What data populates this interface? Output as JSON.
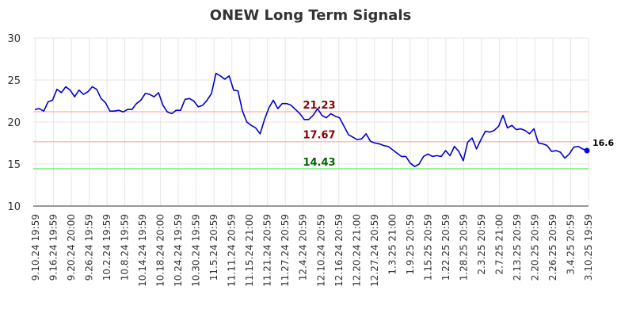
{
  "chart_data": {
    "type": "line",
    "title": "ONEW Long Term Signals",
    "xlabel": "",
    "ylabel": "",
    "ylim": [
      10,
      30
    ],
    "yticks": [
      10,
      15,
      20,
      25,
      30
    ],
    "grid": true,
    "x_tick_labels": [
      "9.10.24 19:59",
      "9.16.24 19:59",
      "9.20.24 20:00",
      "9.26.24 19:59",
      "10.2.24 19:59",
      "10.8.24 19:59",
      "10.14.24 19:59",
      "10.18.24 20:00",
      "10.24.24 19:59",
      "10.30.24 19:59",
      "11.5.24 20:59",
      "11.11.24 20:59",
      "11.15.24 21:00",
      "11.21.24 20:59",
      "11.27.24 20:59",
      "12.4.24 20:59",
      "12.10.24 20:59",
      "12.16.24 20:59",
      "12.20.24 21:00",
      "12.27.24 20:59",
      "1.3.25 21:00",
      "1.9.25 20:59",
      "1.15.25 20:59",
      "1.22.25 20:59",
      "1.28.25 20:59",
      "2.3.25 20:59",
      "2.7.25 21:00",
      "2.13.25 20:59",
      "2.20.25 20:59",
      "2.26.25 20:59",
      "3.4.25 20:59",
      "3.10.25 19:59"
    ],
    "series": [
      {
        "color": "#0000cc",
        "values": [
          21.5,
          21.6,
          21.3,
          22.4,
          22.6,
          23.9,
          23.5,
          24.2,
          23.8,
          23.0,
          23.8,
          23.3,
          23.6,
          24.2,
          23.9,
          22.8,
          22.3,
          21.3,
          21.3,
          21.4,
          21.2,
          21.5,
          21.5,
          22.2,
          22.6,
          23.4,
          23.3,
          23.0,
          23.5,
          22.0,
          21.2,
          21.0,
          21.4,
          21.4,
          22.7,
          22.8,
          22.5,
          21.8,
          22.0,
          22.6,
          23.4,
          25.8,
          25.5,
          25.1,
          25.5,
          23.8,
          23.7,
          21.3,
          20.0,
          19.6,
          19.3,
          18.6,
          20.3,
          21.7,
          22.6,
          21.6,
          22.2,
          22.2,
          22.0,
          21.5,
          21.0,
          20.3,
          20.3,
          20.8,
          21.6,
          20.8,
          20.5,
          21.0,
          20.7,
          20.5,
          19.5,
          18.5,
          18.2,
          17.9,
          18.0,
          18.6,
          17.7,
          17.5,
          17.4,
          17.2,
          17.1,
          16.7,
          16.3,
          15.9,
          15.9,
          15.1,
          14.7,
          15.0,
          15.9,
          16.2,
          15.9,
          16.0,
          15.9,
          16.6,
          16.0,
          17.1,
          16.5,
          15.4,
          17.6,
          18.1,
          16.8,
          17.9,
          18.9,
          18.8,
          19.0,
          19.5,
          20.8,
          19.3,
          19.6,
          19.1,
          19.2,
          19.0,
          18.6,
          19.2,
          17.5,
          17.4,
          17.2,
          16.5,
          16.6,
          16.4,
          15.7,
          16.2,
          17.0,
          17.1,
          16.8,
          16.6
        ]
      }
    ],
    "levels": [
      {
        "value": 21.23,
        "label": "21.23",
        "line_color": "#ffbbbb",
        "text_color": "#8b0000"
      },
      {
        "value": 17.67,
        "label": "17.67",
        "line_color": "#ffbbbb",
        "text_color": "#8b0000"
      },
      {
        "value": 14.43,
        "label": "14.43",
        "line_color": "#77ee77",
        "text_color": "#006400"
      }
    ],
    "last_value": {
      "value": 16.6,
      "label": "16.6",
      "color": "#0000ff"
    }
  }
}
